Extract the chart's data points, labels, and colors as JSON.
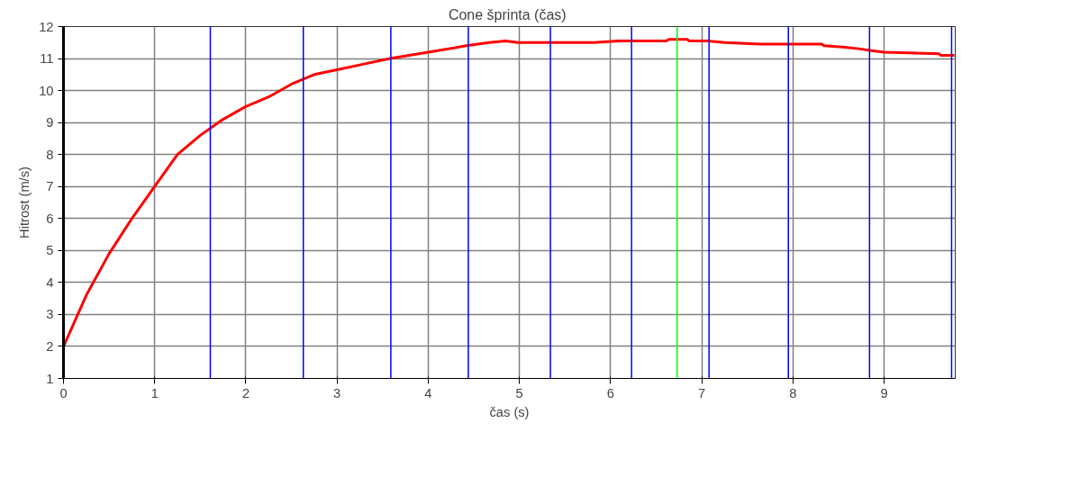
{
  "chart_data": {
    "type": "line",
    "title": "Cone šprinta  (čas)",
    "xlabel": "čas (s)",
    "ylabel": "Hitrost (m/s)",
    "x": [
      0,
      0.25,
      0.5,
      0.75,
      1.0,
      1.25,
      1.5,
      1.75,
      2.0,
      2.25,
      2.5,
      2.75,
      3.0,
      3.25,
      3.58,
      4.0,
      4.42,
      4.67,
      4.85,
      4.98,
      5.82,
      6.09,
      6.61,
      6.64,
      6.84,
      6.86,
      7.06,
      7.25,
      7.64,
      7.66,
      8.32,
      8.34,
      8.57,
      8.74,
      8.86,
      9.0,
      9.6,
      9.62,
      9.77
    ],
    "series": [
      {
        "color": "#ff0000",
        "values": [
          2.0,
          3.6,
          4.9,
          6.0,
          7.0,
          8.0,
          8.6,
          9.1,
          9.5,
          9.8,
          10.2,
          10.5,
          10.65,
          10.8,
          11.0,
          11.2,
          11.4,
          11.5,
          11.55,
          11.5,
          11.5,
          11.55,
          11.55,
          11.6,
          11.6,
          11.55,
          11.55,
          11.5,
          11.45,
          11.45,
          11.45,
          11.4,
          11.35,
          11.3,
          11.25,
          11.2,
          11.15,
          11.1,
          11.1
        ]
      }
    ],
    "xlim": [
      0,
      9.78
    ],
    "ylim": [
      1,
      12
    ],
    "xticks": [
      0,
      1,
      2,
      3,
      4,
      5,
      6,
      7,
      8,
      9
    ],
    "yticks": [
      1,
      2,
      3,
      4,
      5,
      6,
      7,
      8,
      9,
      10,
      11,
      12
    ],
    "grid": true,
    "line_style": "solid",
    "ref_lines": [
      {
        "axis": "x",
        "value": 1.61,
        "color": "#0000ff"
      },
      {
        "axis": "x",
        "value": 2.63,
        "color": "#0000ff"
      },
      {
        "axis": "x",
        "value": 3.59,
        "color": "#0000ff"
      },
      {
        "axis": "x",
        "value": 4.44,
        "color": "#0000ff"
      },
      {
        "axis": "x",
        "value": 5.34,
        "color": "#0000ff"
      },
      {
        "axis": "x",
        "value": 6.23,
        "color": "#0000ff"
      },
      {
        "axis": "x",
        "value": 6.73,
        "color": "#00ff00"
      },
      {
        "axis": "x",
        "value": 7.08,
        "color": "#0000ff"
      },
      {
        "axis": "x",
        "value": 7.95,
        "color": "#0000ff"
      },
      {
        "axis": "x",
        "value": 8.84,
        "color": "#0000ff"
      },
      {
        "axis": "x",
        "value": 9.74,
        "color": "#0000ff"
      }
    ]
  }
}
